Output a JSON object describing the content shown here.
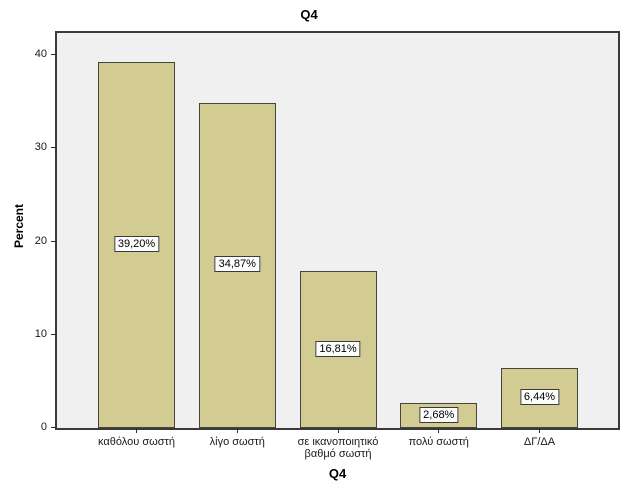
{
  "chart_data": {
    "type": "bar",
    "title": "Q4",
    "xlabel": "Q4",
    "ylabel": "Percent",
    "categories": [
      "καθόλου σωστή",
      "λίγο σωστή",
      "σε ικανοποιητικό βαθμό σωστή",
      "πολύ σωστή",
      "ΔΓ/ΔΑ"
    ],
    "values": [
      39.2,
      34.87,
      16.81,
      2.68,
      6.44
    ],
    "value_labels": [
      "39,20%",
      "34,87%",
      "16,81%",
      "2,68%",
      "6,44%"
    ],
    "y_ticks": [
      0,
      10,
      20,
      30,
      40
    ],
    "ylim": [
      0,
      42.4
    ],
    "grid": false,
    "legend": false,
    "decimal_separator": ",",
    "colors": {
      "bar_fill": "#d2cc92",
      "bar_border": "#45453a",
      "plot_background": "#f0f0f0",
      "plot_border": "#3a3a3a",
      "text": "#000000"
    }
  }
}
